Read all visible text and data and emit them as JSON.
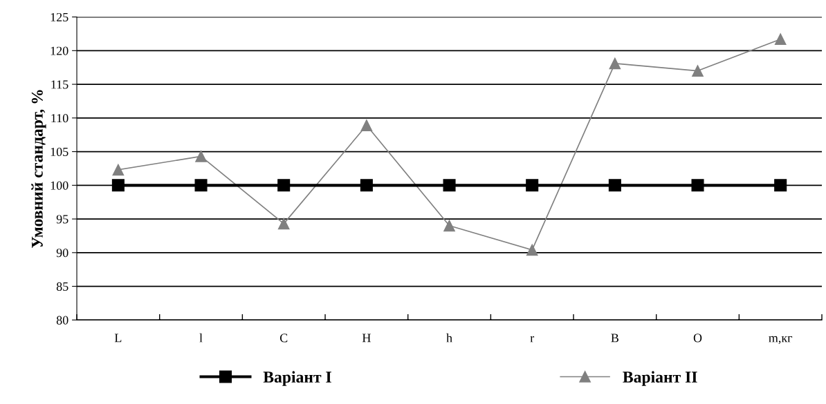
{
  "chart_data": {
    "type": "line",
    "ylabel": "Умовний стандарт, %",
    "categories": [
      "L",
      "l",
      "C",
      "H",
      "h",
      "r",
      "B",
      "O",
      "m,кг"
    ],
    "series": [
      {
        "name": "Варіант I",
        "color": "#000000",
        "marker": "square",
        "values": [
          100,
          100,
          100,
          100,
          100,
          100,
          100,
          100,
          100
        ]
      },
      {
        "name": "Варіант II",
        "color": "#808080",
        "marker": "triangle",
        "values": [
          102.3,
          104.3,
          94.3,
          108.9,
          94.0,
          90.4,
          118.1,
          117.0,
          121.7
        ]
      }
    ],
    "ylim": [
      80,
      125
    ],
    "yticks": [
      80,
      85,
      90,
      95,
      100,
      105,
      110,
      115,
      120,
      125
    ],
    "grid": "y",
    "legend": "bottom",
    "line_style": "solid"
  }
}
